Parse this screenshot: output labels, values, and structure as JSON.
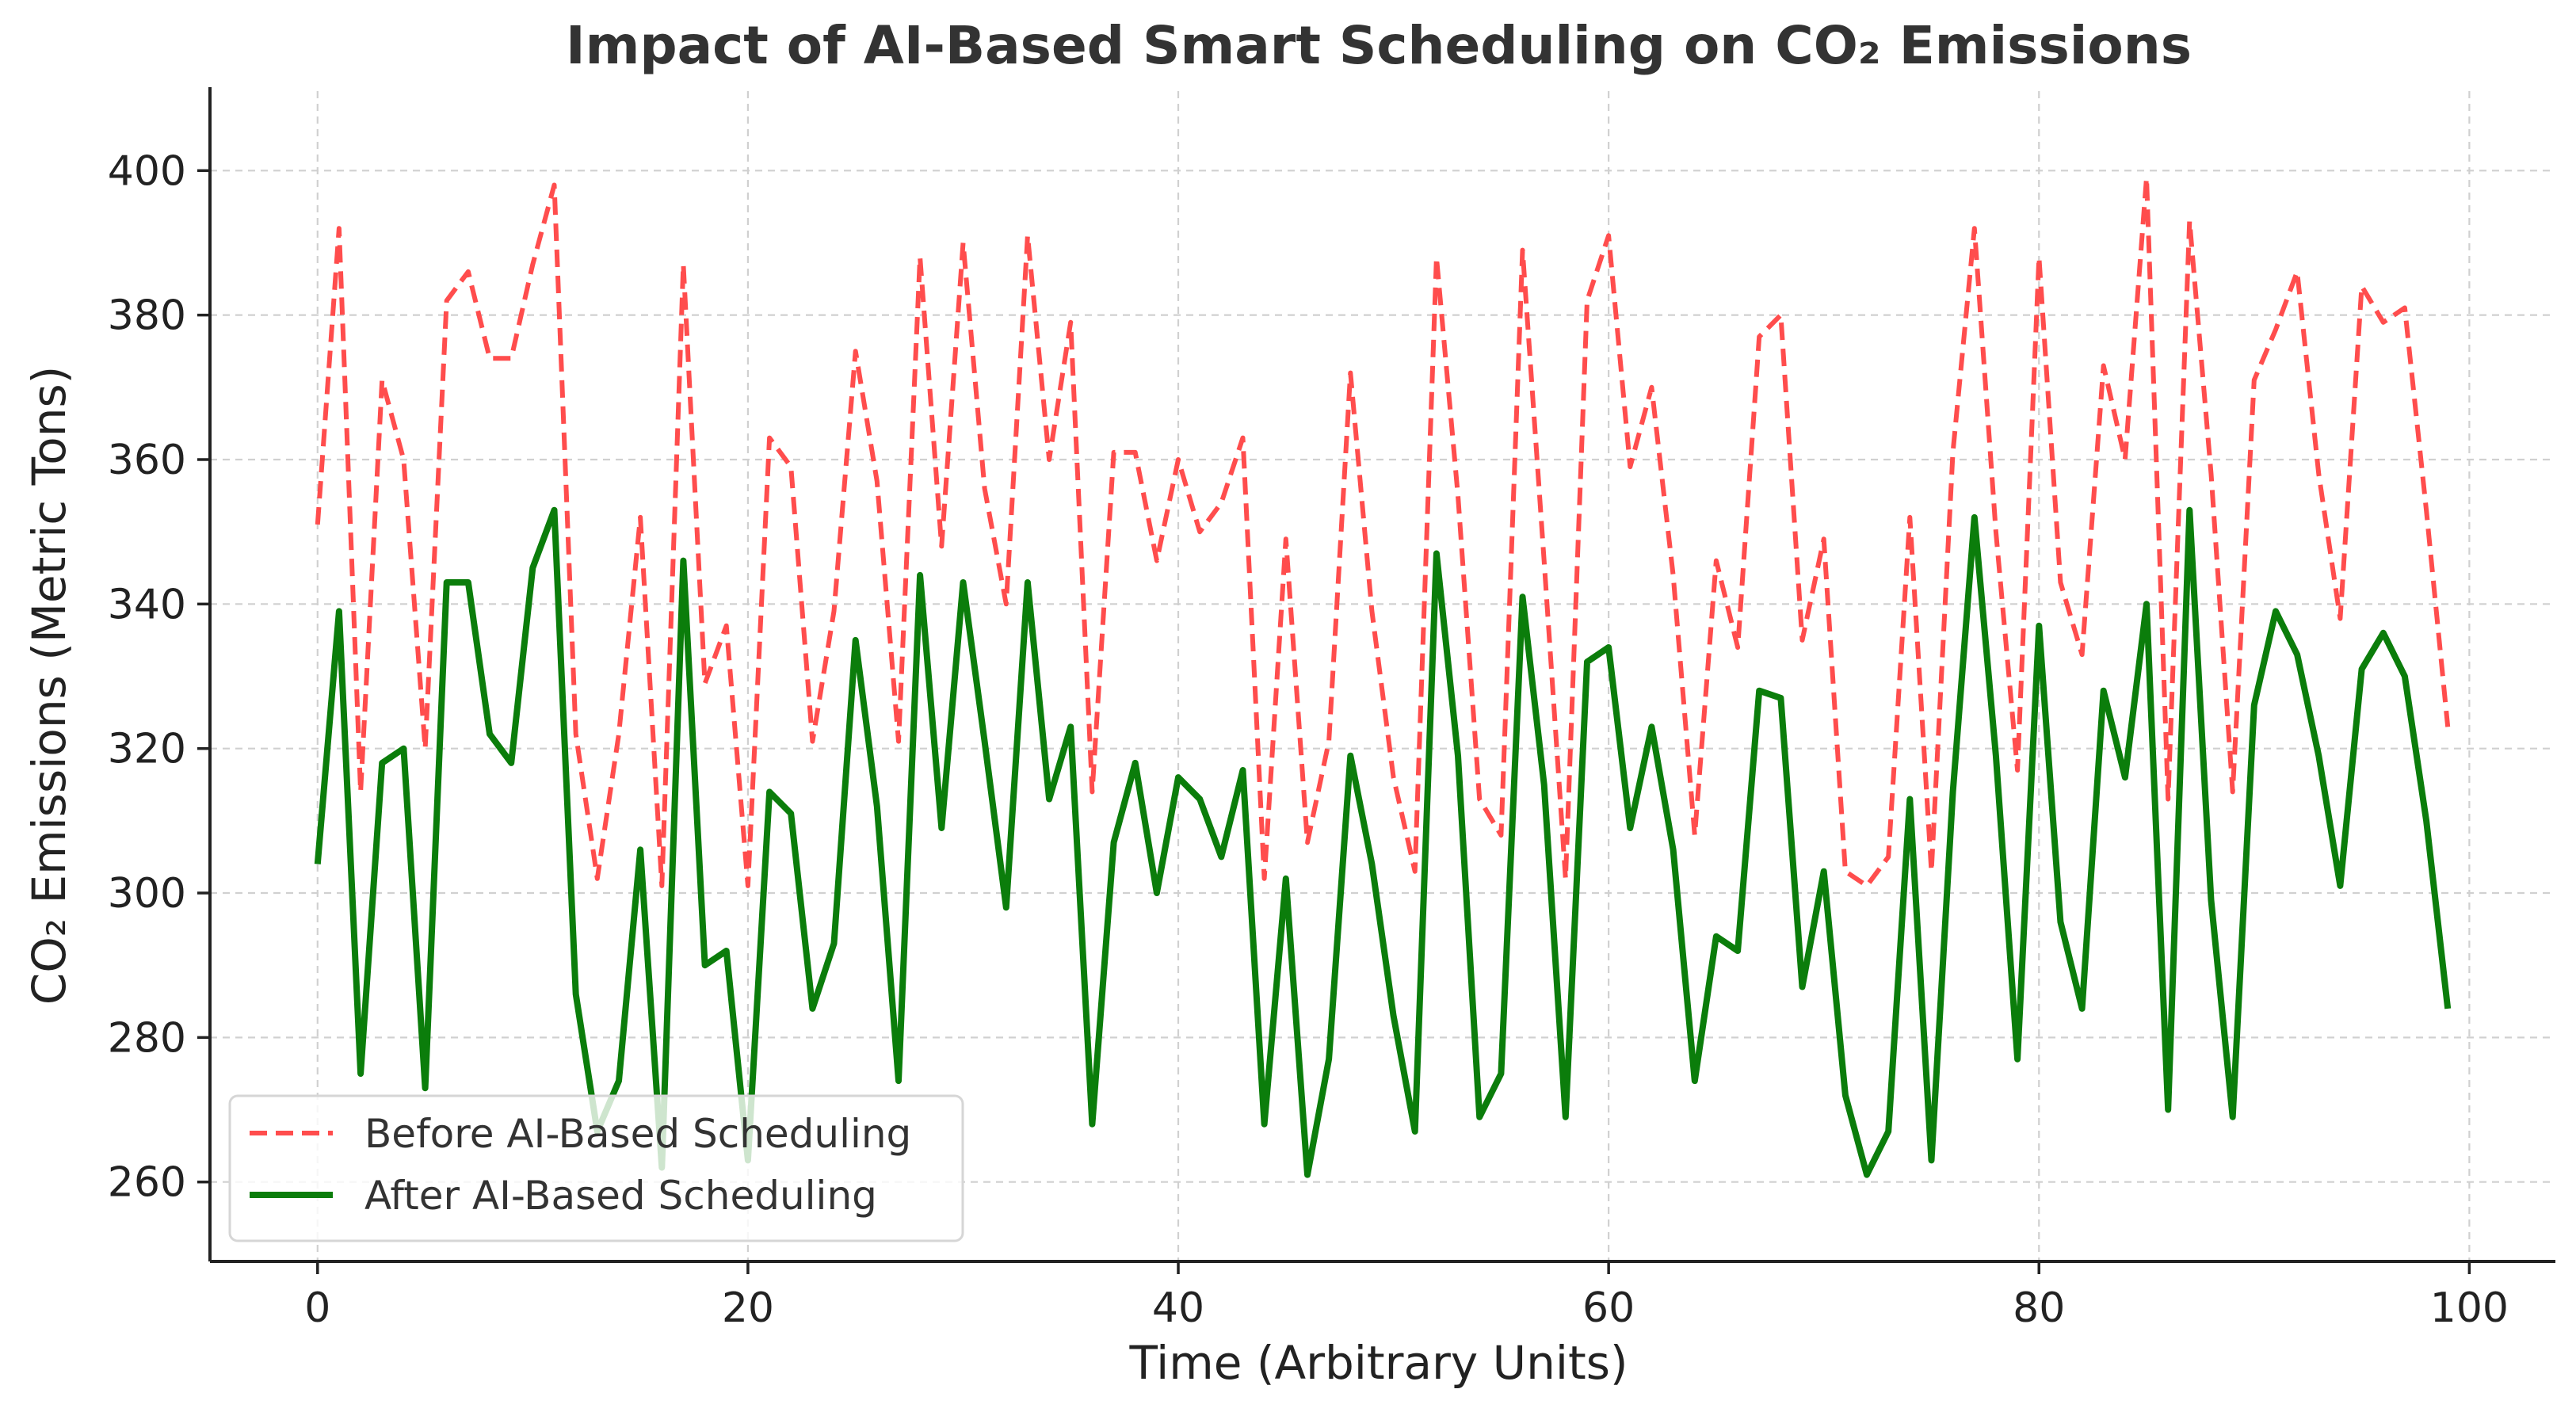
{
  "chart_data": {
    "type": "line",
    "title": "Impact of AI-Based Smart Scheduling on CO₂ Emissions",
    "xlabel": "Time (Arbitrary Units)",
    "ylabel": "CO₂ Emissions (Metric Tons)",
    "xlim": [
      -5,
      104
    ],
    "ylim": [
      249,
      411
    ],
    "xticks": [
      0,
      20,
      40,
      60,
      80,
      100
    ],
    "yticks": [
      260,
      280,
      300,
      320,
      340,
      360,
      380,
      400
    ],
    "xtick_labels": [
      "0",
      "20",
      "40",
      "60",
      "80",
      "100"
    ],
    "ytick_labels": [
      "260",
      "280",
      "300",
      "320",
      "340",
      "360",
      "380",
      "400"
    ],
    "grid": true,
    "legend_position": "lower-left",
    "x": [
      0,
      1,
      2,
      3,
      4,
      5,
      6,
      7,
      8,
      9,
      10,
      11,
      12,
      13,
      14,
      15,
      16,
      17,
      18,
      19,
      20,
      21,
      22,
      23,
      24,
      25,
      26,
      27,
      28,
      29,
      30,
      31,
      32,
      33,
      34,
      35,
      36,
      37,
      38,
      39,
      40,
      41,
      42,
      43,
      44,
      45,
      46,
      47,
      48,
      49,
      50,
      51,
      52,
      53,
      54,
      55,
      56,
      57,
      58,
      59,
      60,
      61,
      62,
      63,
      64,
      65,
      66,
      67,
      68,
      69,
      70,
      71,
      72,
      73,
      74,
      75,
      76,
      77,
      78,
      79,
      80,
      81,
      82,
      83,
      84,
      85,
      86,
      87,
      88,
      89,
      90,
      91,
      92,
      93,
      94,
      95,
      96,
      97,
      98,
      99
    ],
    "series": [
      {
        "name": "Before AI-Based Scheduling",
        "color": "#ff4d4d",
        "style": "dashed",
        "values": [
          351,
          392,
          314,
          371,
          360,
          320,
          382,
          386,
          374,
          374,
          387,
          398,
          322,
          302,
          322,
          352,
          301,
          387,
          329,
          337,
          301,
          363,
          359,
          321,
          339,
          375,
          357,
          321,
          388,
          348,
          390,
          356,
          340,
          391,
          360,
          379,
          314,
          361,
          361,
          346,
          360,
          350,
          354,
          363,
          302,
          349,
          307,
          321,
          372,
          339,
          316,
          303,
          388,
          355,
          313,
          308,
          389,
          346,
          302,
          382,
          391,
          359,
          370,
          344,
          308,
          346,
          334,
          377,
          380,
          335,
          349,
          303,
          301,
          305,
          352,
          303,
          361,
          392,
          350,
          317,
          388,
          343,
          333,
          373,
          360,
          399,
          313,
          393,
          358,
          314,
          371,
          378,
          386,
          358,
          338,
          384,
          379,
          381,
          353,
          323
        ]
      },
      {
        "name": "After AI-Based Scheduling",
        "color": "#0b7d0b",
        "style": "solid",
        "values": [
          304,
          339,
          275,
          318,
          320,
          273,
          343,
          343,
          322,
          318,
          345,
          353,
          286,
          267,
          274,
          306,
          262,
          346,
          290,
          292,
          263,
          314,
          311,
          284,
          293,
          335,
          312,
          274,
          344,
          309,
          343,
          321,
          298,
          343,
          313,
          323,
          268,
          307,
          318,
          300,
          316,
          313,
          305,
          317,
          268,
          302,
          261,
          277,
          319,
          304,
          283,
          267,
          347,
          319,
          269,
          275,
          341,
          315,
          269,
          332,
          334,
          309,
          323,
          306,
          274,
          294,
          292,
          328,
          327,
          287,
          303,
          272,
          261,
          267,
          313,
          263,
          314,
          352,
          319,
          277,
          337,
          296,
          284,
          328,
          316,
          340,
          270,
          353,
          299,
          269,
          326,
          339,
          333,
          319,
          301,
          331,
          336,
          330,
          310,
          284
        ]
      }
    ]
  }
}
